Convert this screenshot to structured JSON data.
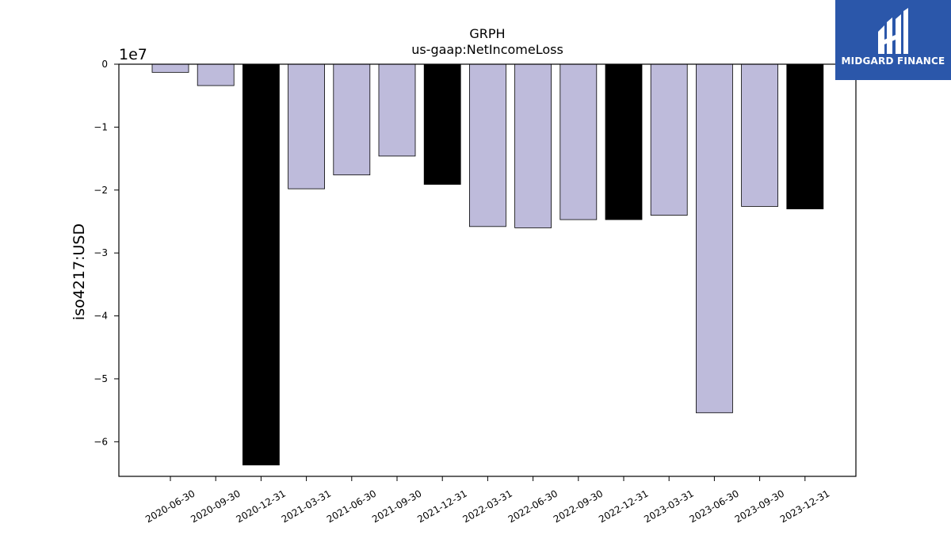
{
  "logo": {
    "text": "MIDGARD FINANCE",
    "icon": "midgard-logo-mark",
    "bg_color": "#2b57aa"
  },
  "chart_data": {
    "type": "bar",
    "title": "GRPH",
    "subtitle": "us-gaap:NetIncomeLoss",
    "ylabel": "iso4217:USD",
    "xlabel": "",
    "offset_label": "1e7",
    "ylim": [
      -65500000,
      0
    ],
    "yticks": [
      0,
      -10000000,
      -20000000,
      -30000000,
      -40000000,
      -50000000,
      -60000000
    ],
    "ytick_labels": [
      "0",
      "−1",
      "−2",
      "−3",
      "−4",
      "−5",
      "−6"
    ],
    "categories": [
      "2020-06-30",
      "2020-09-30",
      "2020-12-31",
      "2021-03-31",
      "2021-06-30",
      "2021-09-30",
      "2021-12-31",
      "2022-03-31",
      "2022-06-30",
      "2022-09-30",
      "2022-12-31",
      "2023-03-31",
      "2023-06-30",
      "2023-09-30",
      "2023-12-31"
    ],
    "values": [
      -1300000,
      -3400000,
      -63700000,
      -19800000,
      -17600000,
      -14600000,
      -19100000,
      -25800000,
      -26000000,
      -24700000,
      -24700000,
      -24000000,
      -55400000,
      -22600000,
      -23000000
    ],
    "highlight": [
      false,
      false,
      true,
      false,
      false,
      false,
      true,
      false,
      false,
      false,
      true,
      false,
      false,
      false,
      true
    ],
    "colors": {
      "bar": "#bebbdb",
      "highlight": "#000000",
      "edge": "#000000"
    },
    "grid": false
  }
}
